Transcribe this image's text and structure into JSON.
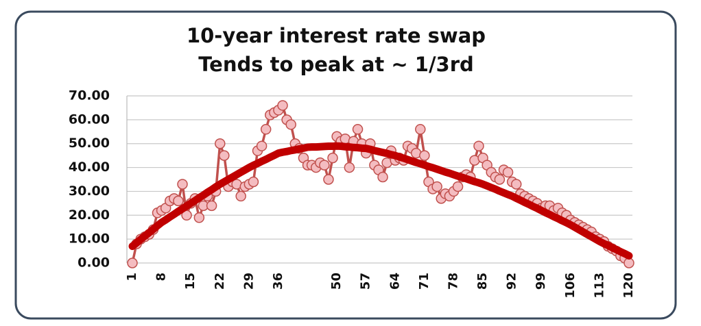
{
  "chart_data": {
    "type": "line",
    "title": "10-year interest rate swap",
    "subtitle": "Tends to peak at ~ 1/3rd",
    "categories": [
      1,
      null,
      null,
      null,
      null,
      null,
      null,
      8,
      null,
      null,
      null,
      null,
      null,
      null,
      15,
      null,
      null,
      null,
      null,
      null,
      null,
      22,
      null,
      null,
      null,
      null,
      null,
      null,
      29,
      null,
      null,
      null,
      null,
      null,
      null,
      36,
      null,
      null,
      null,
      null,
      null,
      null,
      null,
      null,
      null,
      null,
      null,
      null,
      null,
      50,
      null,
      null,
      null,
      null,
      null,
      null,
      57,
      null,
      null,
      null,
      null,
      null,
      null,
      64,
      null,
      null,
      null,
      null,
      null,
      null,
      71,
      null,
      null,
      null,
      null,
      null,
      null,
      78,
      null,
      null,
      null,
      null,
      null,
      null,
      85,
      null,
      null,
      null,
      null,
      null,
      null,
      92,
      null,
      null,
      null,
      null,
      null,
      null,
      99,
      null,
      null,
      null,
      null,
      null,
      null,
      106,
      null,
      null,
      null,
      null,
      null,
      null,
      113,
      null,
      null,
      null,
      null,
      null,
      null,
      120
    ],
    "series": [
      {
        "color": "#c0504d",
        "marker_fill": "#f4bcc0",
        "markers": true,
        "values": [
          0,
          8,
          10,
          11,
          12,
          14,
          21,
          22,
          23,
          26,
          27,
          26,
          33,
          20,
          25,
          27,
          19,
          24,
          28,
          24,
          30,
          50,
          45,
          32,
          34,
          33,
          28,
          32,
          33,
          34,
          47,
          49,
          56,
          62,
          63,
          64,
          66,
          60,
          58,
          50,
          48,
          44,
          41,
          41,
          40,
          42,
          41,
          35,
          44,
          53,
          51,
          52,
          40,
          51,
          56,
          50,
          46,
          50,
          41,
          39,
          36,
          42,
          47,
          43,
          44,
          43,
          49,
          48,
          46,
          56,
          45,
          34,
          31,
          32,
          27,
          29,
          28,
          30,
          32,
          36,
          37,
          36,
          43,
          49,
          44,
          41,
          38,
          36,
          35,
          39,
          38,
          34,
          33,
          29,
          28,
          27,
          26,
          25,
          23,
          24,
          24,
          22,
          23,
          21,
          20,
          18,
          17,
          16,
          15,
          14,
          13,
          11,
          10,
          9,
          7,
          6,
          5,
          3,
          2,
          0
        ]
      },
      {
        "color": "#c00000",
        "markers": false,
        "values": [
          7,
          8.4,
          9.9,
          11.3,
          12.7,
          14.1,
          15.6,
          17,
          18.1,
          19.3,
          20.4,
          21.6,
          22.7,
          23.9,
          25,
          26.1,
          27.3,
          28.4,
          29.6,
          30.7,
          31.9,
          33,
          34,
          35,
          36,
          37,
          38,
          39,
          40,
          40.9,
          41.7,
          42.6,
          43.4,
          44.3,
          45.1,
          46,
          46.4,
          46.7,
          47.1,
          47.4,
          47.8,
          48.1,
          48.5,
          48.6,
          48.6,
          48.7,
          48.8,
          48.9,
          48.9,
          49,
          48.9,
          48.7,
          48.6,
          48.4,
          48.3,
          48.1,
          48,
          47.6,
          47.1,
          46.7,
          46.3,
          45.9,
          45.4,
          45,
          44.4,
          43.9,
          43.3,
          42.7,
          42.1,
          41.6,
          41,
          40.4,
          39.9,
          39.3,
          38.7,
          38.1,
          37.6,
          37,
          36.4,
          35.9,
          35.3,
          34.7,
          34.1,
          33.6,
          33,
          32.3,
          31.6,
          30.9,
          30.1,
          29.4,
          28.7,
          28,
          27.1,
          26.3,
          25.4,
          24.6,
          23.7,
          22.9,
          22,
          21.1,
          20.3,
          19.4,
          18.6,
          17.7,
          16.9,
          16,
          15,
          14,
          13,
          12,
          11,
          10,
          9,
          8.1,
          7.3,
          6.4,
          5.6,
          4.7,
          3.9,
          3
        ]
      }
    ],
    "ylim": [
      0,
      70
    ],
    "yticks": [
      {
        "value": 0,
        "label": "0.00"
      },
      {
        "value": 10,
        "label": "10.00"
      },
      {
        "value": 20,
        "label": "20.00"
      },
      {
        "value": 30,
        "label": "30.00"
      },
      {
        "value": 40,
        "label": "40.00"
      },
      {
        "value": 50,
        "label": "50.00"
      },
      {
        "value": 60,
        "label": "60.00"
      },
      {
        "value": 70,
        "label": "70.00"
      }
    ],
    "grid": true
  }
}
